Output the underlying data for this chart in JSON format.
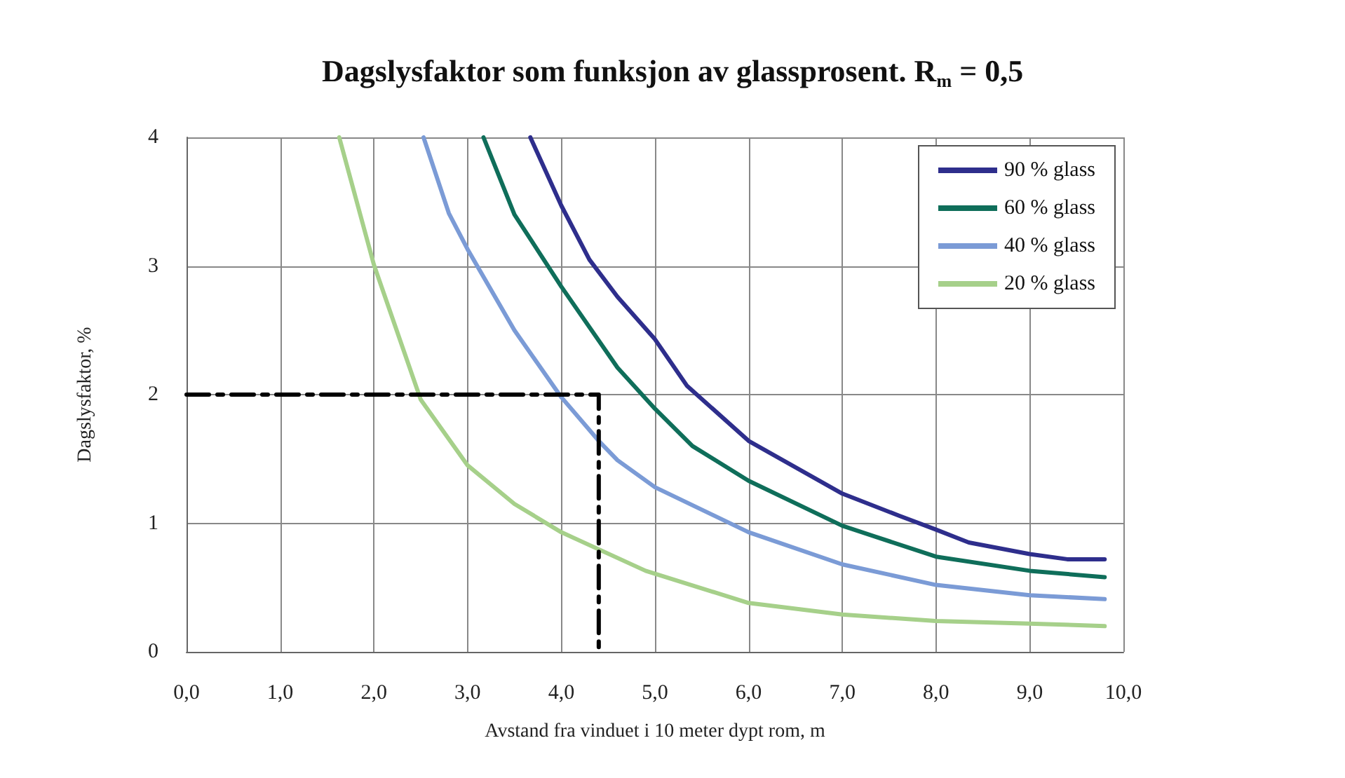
{
  "chart_data": {
    "type": "line",
    "title": "Dagslysfaktor som funksjon av glassprosent. R$_{m}$ = 0,5",
    "xlabel": "Avstand fra vinduet i 10 meter dypt rom, m",
    "ylabel": "Dagslysfaktor, %",
    "xlim": [
      0,
      10
    ],
    "xticks": [
      {
        "value": 0,
        "label": "0,0"
      },
      {
        "value": 1,
        "label": "1,0"
      },
      {
        "value": 2,
        "label": "2,0"
      },
      {
        "value": 3,
        "label": "3,0"
      },
      {
        "value": 4,
        "label": "4,0"
      },
      {
        "value": 5,
        "label": "5,0"
      },
      {
        "value": 6,
        "label": "6,0"
      },
      {
        "value": 7,
        "label": "7,0"
      },
      {
        "value": 8,
        "label": "8,0"
      },
      {
        "value": 9,
        "label": "9,0"
      },
      {
        "value": 10,
        "label": "10,0"
      }
    ],
    "ylim": [
      0,
      4
    ],
    "yticks": [
      0,
      1,
      2,
      3,
      4
    ],
    "grid": true,
    "legend": "top right",
    "marker": "none",
    "line_style": "solid",
    "series": [
      {
        "name": "90 % glass",
        "color": "#2e2e8c",
        "x": [
          3.67,
          4.0,
          4.3,
          4.6,
          5.0,
          5.34,
          6.0,
          7.0,
          7.6,
          8.0,
          8.35,
          9.0,
          9.4,
          9.8
        ],
        "values": [
          4.0,
          3.47,
          3.05,
          2.76,
          2.43,
          2.07,
          1.64,
          1.23,
          1.06,
          0.95,
          0.85,
          0.76,
          0.72,
          0.72
        ]
      },
      {
        "name": "60 % glass",
        "color": "#0f6e5a",
        "x": [
          3.17,
          3.5,
          4.0,
          4.6,
          5.0,
          5.4,
          6.0,
          7.0,
          8.0,
          9.0,
          9.8
        ],
        "values": [
          4.0,
          3.4,
          2.84,
          2.21,
          1.89,
          1.6,
          1.33,
          0.98,
          0.74,
          0.63,
          0.58
        ]
      },
      {
        "name": "40 % glass",
        "color": "#7b9bd6",
        "x": [
          2.53,
          2.8,
          3.0,
          3.5,
          4.0,
          4.4,
          4.6,
          5.0,
          6.0,
          7.0,
          8.0,
          9.0,
          9.8
        ],
        "values": [
          4.0,
          3.41,
          3.13,
          2.5,
          1.98,
          1.64,
          1.49,
          1.28,
          0.93,
          0.68,
          0.52,
          0.44,
          0.41
        ]
      },
      {
        "name": "20 % glass",
        "color": "#a6d08a",
        "x": [
          1.63,
          2.0,
          2.5,
          3.0,
          3.5,
          4.0,
          4.9,
          6.0,
          7.0,
          8.0,
          9.0,
          9.8
        ],
        "values": [
          4.0,
          3.01,
          1.96,
          1.45,
          1.15,
          0.93,
          0.63,
          0.38,
          0.29,
          0.24,
          0.22,
          0.2
        ]
      },
      {
        "color": "#000000",
        "line_style": "dashed",
        "x": [
          0,
          4.4,
          4.4
        ],
        "values": [
          2,
          2,
          0
        ]
      }
    ]
  }
}
